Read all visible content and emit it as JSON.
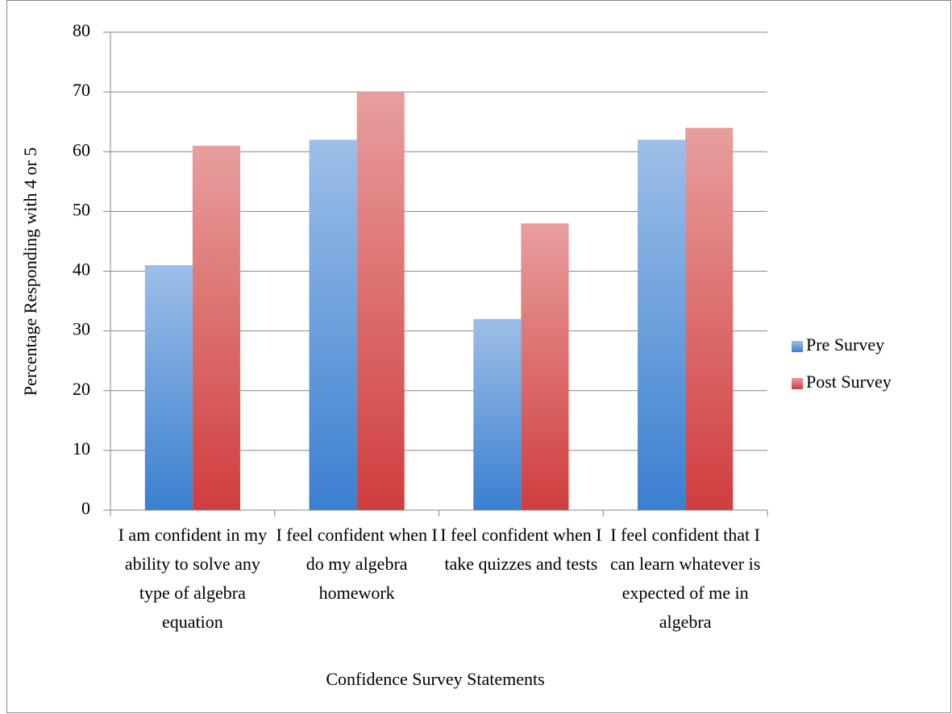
{
  "chart_data": {
    "type": "bar",
    "x_label": "Confidence Survey Statements",
    "y_label": "Percentage Responding with 4 or 5",
    "categories": [
      "I am confident in my ability to solve any type of algebra equation",
      "I feel confident when I do my algebra homework",
      "I feel confident when I take quizzes and tests",
      "I feel confident that I can learn whatever is expected of me in algebra"
    ],
    "series": [
      {
        "name": "Pre Survey",
        "color": "#3a7fd0",
        "values": [
          41,
          62,
          32,
          62
        ]
      },
      {
        "name": "Post Survey",
        "color": "#d03d3d",
        "values": [
          61,
          70,
          48,
          64
        ]
      }
    ],
    "ylim": [
      0,
      80
    ],
    "yticks": [
      0,
      10,
      20,
      30,
      40,
      50,
      60,
      70,
      80
    ],
    "grid": true,
    "legend": "right"
  }
}
